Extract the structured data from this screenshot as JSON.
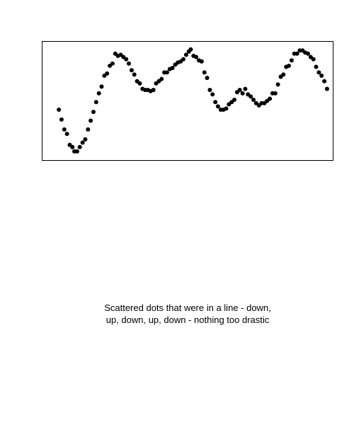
{
  "caption": {
    "line1": "Scattered dots that were in a line - down,",
    "line2": "up, down, up, down - nothing too drastic"
  },
  "chart_data": {
    "type": "scatter",
    "title": "",
    "xlabel": "",
    "ylabel": "",
    "axes_visible": false,
    "frame": true,
    "grid": false,
    "marker_color": "#000000",
    "xlim": [
      0,
      100
    ],
    "ylim": [
      0,
      100
    ],
    "points": [
      [
        3.4,
        42
      ],
      [
        4.4,
        33
      ],
      [
        5.4,
        24
      ],
      [
        6.4,
        20
      ],
      [
        7.4,
        10
      ],
      [
        8.4,
        8
      ],
      [
        9.1,
        4
      ],
      [
        10.1,
        4
      ],
      [
        11.1,
        8
      ],
      [
        12.1,
        12
      ],
      [
        13.1,
        15
      ],
      [
        14.1,
        24
      ],
      [
        15.1,
        32
      ],
      [
        16.1,
        40
      ],
      [
        17.1,
        49
      ],
      [
        18.1,
        57
      ],
      [
        19.1,
        63
      ],
      [
        20.1,
        73
      ],
      [
        21.1,
        75
      ],
      [
        22.1,
        82
      ],
      [
        23.1,
        84
      ],
      [
        24.1,
        93
      ],
      [
        25.1,
        91
      ],
      [
        26.1,
        92
      ],
      [
        27.1,
        90
      ],
      [
        28.1,
        88
      ],
      [
        29.1,
        84
      ],
      [
        30.1,
        78
      ],
      [
        31.1,
        74
      ],
      [
        32.1,
        68
      ],
      [
        33.1,
        66
      ],
      [
        34.1,
        61
      ],
      [
        35.1,
        60
      ],
      [
        36.1,
        60
      ],
      [
        37.1,
        59
      ],
      [
        38.1,
        60
      ],
      [
        39.1,
        66
      ],
      [
        40.1,
        68
      ],
      [
        41.1,
        70
      ],
      [
        42.1,
        76
      ],
      [
        43.1,
        76
      ],
      [
        44.1,
        79
      ],
      [
        45.1,
        80
      ],
      [
        46.1,
        83
      ],
      [
        47.1,
        85
      ],
      [
        48.1,
        86
      ],
      [
        49.1,
        88
      ],
      [
        50.1,
        92
      ],
      [
        51.1,
        95
      ],
      [
        51.8,
        97
      ],
      [
        52.8,
        91
      ],
      [
        53.8,
        90
      ],
      [
        54.8,
        87
      ],
      [
        55.8,
        86
      ],
      [
        56.8,
        76
      ],
      [
        57.8,
        71
      ],
      [
        58.8,
        60
      ],
      [
        59.8,
        56
      ],
      [
        60.8,
        49
      ],
      [
        61.8,
        45
      ],
      [
        62.8,
        42
      ],
      [
        63.8,
        42
      ],
      [
        64.8,
        43
      ],
      [
        65.8,
        47
      ],
      [
        66.8,
        49
      ],
      [
        67.8,
        51
      ],
      [
        68.8,
        58
      ],
      [
        69.8,
        60
      ],
      [
        70.8,
        57
      ],
      [
        71.8,
        61
      ],
      [
        72.8,
        56
      ],
      [
        73.8,
        54
      ],
      [
        74.8,
        51
      ],
      [
        75.8,
        48
      ],
      [
        76.8,
        46
      ],
      [
        77.8,
        48
      ],
      [
        78.8,
        48
      ],
      [
        79.8,
        50
      ],
      [
        80.8,
        52
      ],
      [
        81.8,
        57
      ],
      [
        82.8,
        57
      ],
      [
        83.8,
        65
      ],
      [
        84.8,
        72
      ],
      [
        85.8,
        74
      ],
      [
        86.8,
        81
      ],
      [
        87.8,
        82
      ],
      [
        88.8,
        87
      ],
      [
        89.8,
        93
      ],
      [
        90.8,
        93
      ],
      [
        91.8,
        96
      ],
      [
        92.8,
        96
      ],
      [
        93.8,
        94
      ],
      [
        94.8,
        93
      ],
      [
        95.8,
        90
      ],
      [
        96.8,
        88
      ],
      [
        97.8,
        81
      ],
      [
        98.8,
        76
      ],
      [
        99.8,
        73
      ],
      [
        100.8,
        68
      ],
      [
        101.8,
        61
      ]
    ]
  }
}
